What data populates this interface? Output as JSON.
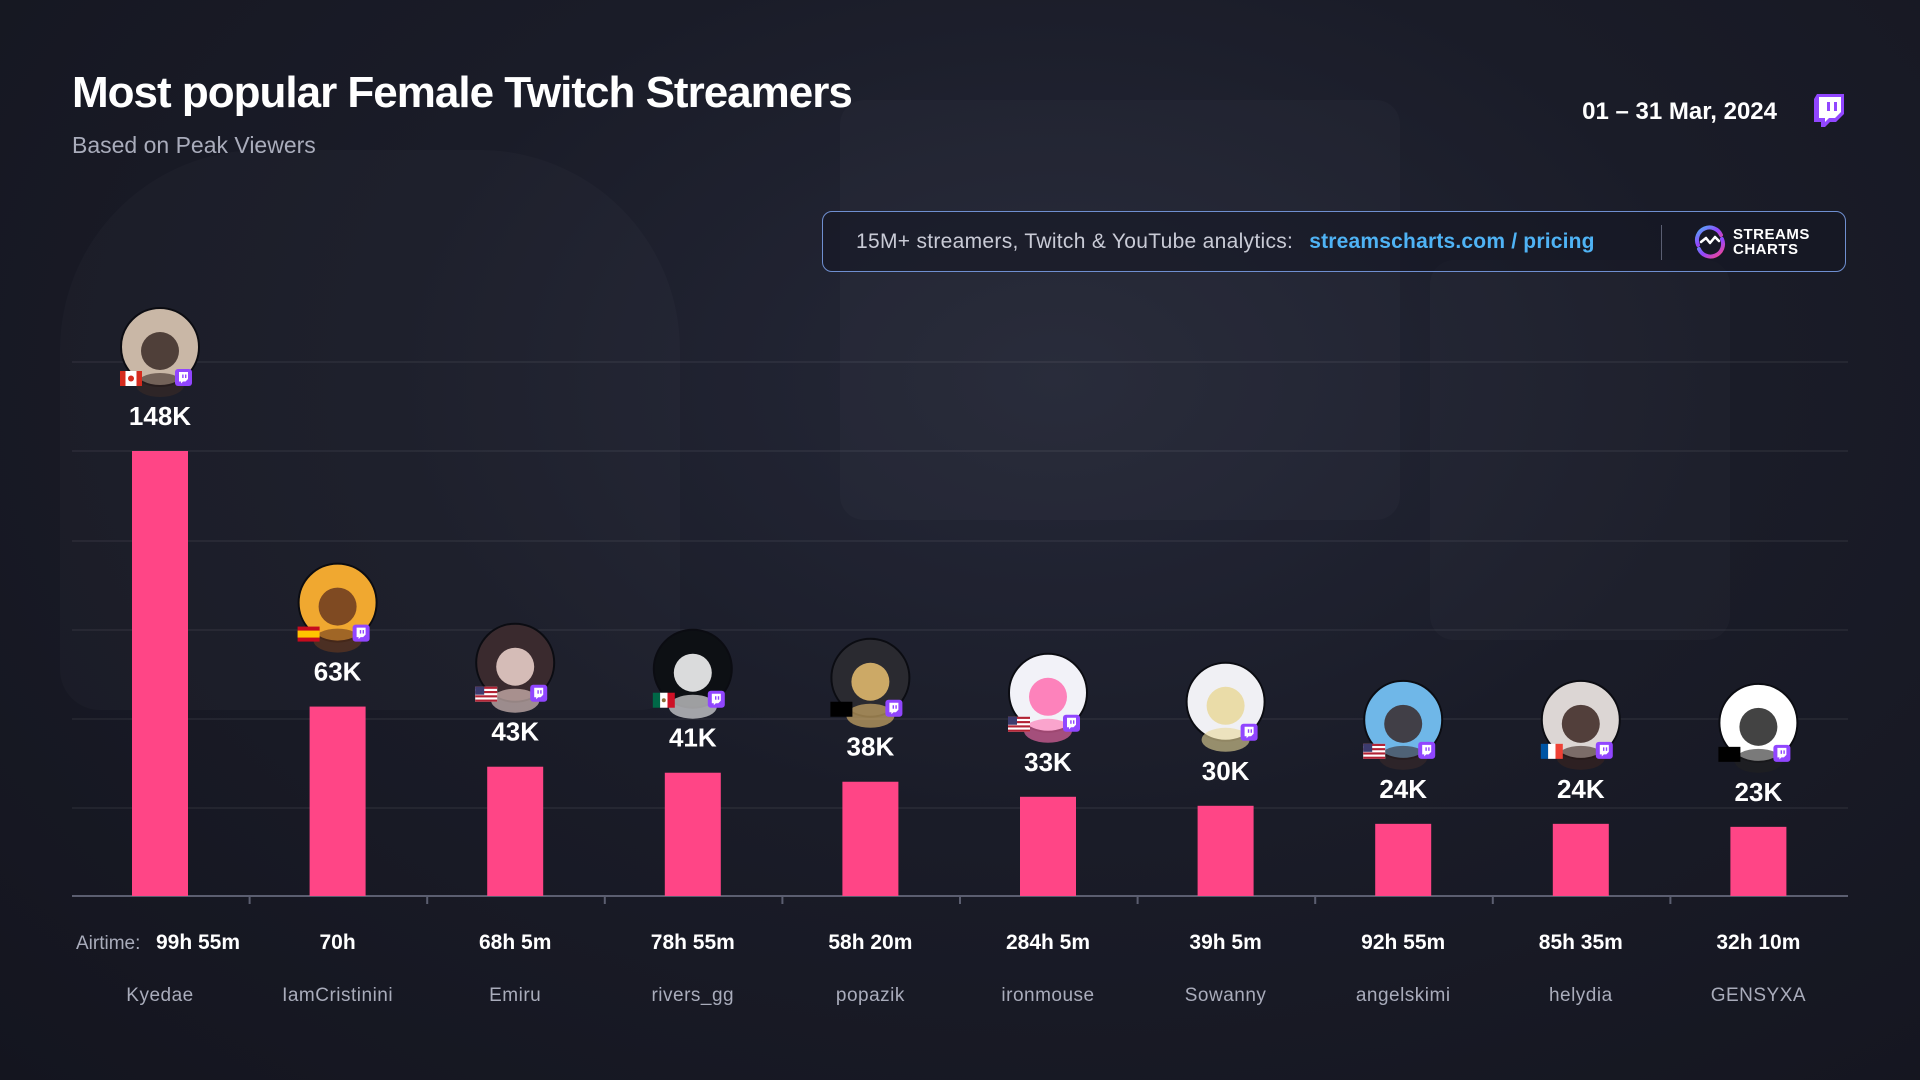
{
  "header": {
    "title": "Most popular Female Twitch Streamers",
    "subtitle": "Based on Peak Viewers",
    "date_range": "01 – 31 Mar, 2024"
  },
  "promo": {
    "text": "15M+ streamers, Twitch & YouTube analytics:",
    "link": "streamscharts.com / pricing",
    "brand_line1": "STREAMS",
    "brand_line2": "CHARTS"
  },
  "colors": {
    "bar": "#ff4586",
    "twitch": "#9146ff",
    "link": "#4fb3f5"
  },
  "chart_data": {
    "type": "bar",
    "title": "Most popular Female Twitch Streamers",
    "subtitle": "Based on Peak Viewers",
    "airtime_label": "Airtime:",
    "ylim": [
      0,
      160000
    ],
    "grid": true,
    "categories": [
      "Kyedae",
      "IamCristinini",
      "Emiru",
      "rivers_gg",
      "popazik",
      "ironmouse",
      "Sowanny",
      "angelskimi",
      "helydia",
      "GENSYXA"
    ],
    "values": [
      148000,
      63000,
      43000,
      41000,
      38000,
      33000,
      30000,
      24000,
      24000,
      23000
    ],
    "value_labels": [
      "148K",
      "63K",
      "43K",
      "41K",
      "38K",
      "33K",
      "30K",
      "24K",
      "24K",
      "23K"
    ],
    "airtime": [
      "99h 55m",
      "70h",
      "68h 5m",
      "78h 55m",
      "58h 20m",
      "284h 5m",
      "39h 5m",
      "92h 55m",
      "85h 35m",
      "32h 10m"
    ],
    "flags": [
      "canada",
      "spain",
      "usa",
      "mexico",
      "blank",
      "usa",
      "none",
      "usa",
      "france",
      "blank"
    ],
    "avatars": [
      "avatar-kyedae",
      "avatar-iamcristinini",
      "avatar-emiru",
      "avatar-rivers-gg",
      "avatar-popazik",
      "avatar-ironmouse",
      "avatar-sowanny",
      "avatar-angelskimi",
      "avatar-helydia",
      "avatar-gensyxa"
    ]
  }
}
